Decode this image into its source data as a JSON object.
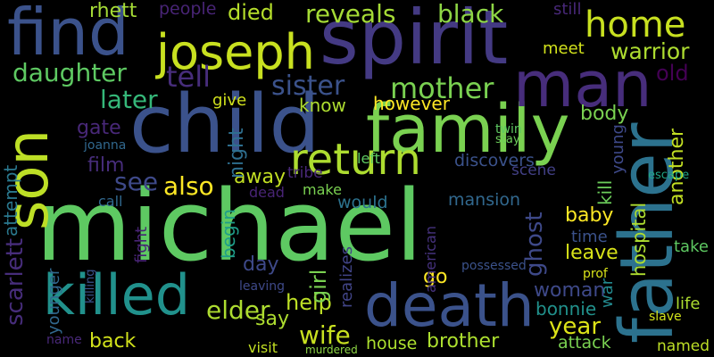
{
  "words": [
    {
      "text": "michael",
      "color": "#5ec962"
    },
    {
      "text": "child",
      "color": "#3b528b"
    },
    {
      "text": "spirit",
      "color": "#443a83"
    },
    {
      "text": "find",
      "color": "#3b528b"
    },
    {
      "text": "family",
      "color": "#7ad151"
    },
    {
      "text": "son",
      "color": "#bddf26"
    },
    {
      "text": "father",
      "color": "#2c728e"
    },
    {
      "text": "death",
      "color": "#3b528b"
    },
    {
      "text": "killed",
      "color": "#21918c"
    },
    {
      "text": "man",
      "color": "#472d7b"
    },
    {
      "text": "joseph",
      "color": "#c8e020"
    },
    {
      "text": "return",
      "color": "#addc30"
    },
    {
      "text": "home",
      "color": "#c8e020"
    },
    {
      "text": "mother",
      "color": "#7ad151"
    },
    {
      "text": "daughter",
      "color": "#5ec962"
    },
    {
      "text": "tell",
      "color": "#472d7b"
    },
    {
      "text": "sister",
      "color": "#3b528b"
    },
    {
      "text": "reveals",
      "color": "#a5db36"
    },
    {
      "text": "black",
      "color": "#8ed645"
    },
    {
      "text": "died",
      "color": "#b5de2b"
    },
    {
      "text": "rhett",
      "color": "#a5db36"
    },
    {
      "text": "people",
      "color": "#482475"
    },
    {
      "text": "warrior",
      "color": "#addc30"
    },
    {
      "text": "old",
      "color": "#440154"
    },
    {
      "text": "later",
      "color": "#35b779"
    },
    {
      "text": "however",
      "color": "#fde725"
    },
    {
      "text": "know",
      "color": "#addc30"
    },
    {
      "text": "give",
      "color": "#d0e11c"
    },
    {
      "text": "body",
      "color": "#7ad151"
    },
    {
      "text": "film",
      "color": "#472d7b"
    },
    {
      "text": "gate",
      "color": "#482878"
    },
    {
      "text": "see",
      "color": "#3e4989"
    },
    {
      "text": "also",
      "color": "#fde725"
    },
    {
      "text": "away",
      "color": "#c2df23"
    },
    {
      "text": "scarlett",
      "color": "#472d7b"
    },
    {
      "text": "attempt",
      "color": "#2a788e"
    },
    {
      "text": "elder",
      "color": "#addc30"
    },
    {
      "text": "help",
      "color": "#bddf26"
    },
    {
      "text": "wife",
      "color": "#c8e020"
    },
    {
      "text": "back",
      "color": "#d2e21b"
    },
    {
      "text": "say",
      "color": "#addc30"
    },
    {
      "text": "day",
      "color": "#3e4989"
    },
    {
      "text": "begin",
      "color": "#1f9e89"
    },
    {
      "text": "baby",
      "color": "#fde725"
    },
    {
      "text": "time",
      "color": "#3b528b"
    },
    {
      "text": "leave",
      "color": "#d8e219"
    },
    {
      "text": "year",
      "color": "#dde318"
    },
    {
      "text": "woman",
      "color": "#3e4989"
    },
    {
      "text": "bonnie",
      "color": "#21918c"
    },
    {
      "text": "house",
      "color": "#ade02f"
    },
    {
      "text": "brother",
      "color": "#ade02f"
    },
    {
      "text": "named",
      "color": "#bddf26"
    },
    {
      "text": "attack",
      "color": "#7ad151"
    },
    {
      "text": "ghost",
      "color": "#3e4989"
    },
    {
      "text": "girl",
      "color": "#7ad151"
    },
    {
      "text": "go",
      "color": "#fde725"
    },
    {
      "text": "american",
      "color": "#46327e"
    },
    {
      "text": "would",
      "color": "#2c728e"
    },
    {
      "text": "mansion",
      "color": "#31688e"
    },
    {
      "text": "make",
      "color": "#7ad151"
    },
    {
      "text": "discovers",
      "color": "#3b528b"
    },
    {
      "text": "another",
      "color": "#c2df23"
    },
    {
      "text": "hospital",
      "color": "#addc30"
    },
    {
      "text": "kill",
      "color": "#6ccd5a"
    },
    {
      "text": "young",
      "color": "#3e4989"
    },
    {
      "text": "life",
      "color": "#addc30"
    },
    {
      "text": "take",
      "color": "#5ec962"
    },
    {
      "text": "still",
      "color": "#482878"
    },
    {
      "text": "meet",
      "color": "#d2e21b"
    },
    {
      "text": "scene",
      "color": "#424086"
    },
    {
      "text": "tribe",
      "color": "#482878"
    },
    {
      "text": "dead",
      "color": "#482475"
    },
    {
      "text": "left",
      "color": "#5ec962"
    },
    {
      "text": "night",
      "color": "#2e6e8e"
    },
    {
      "text": "visit",
      "color": "#c2df23"
    },
    {
      "text": "younger",
      "color": "#31688e"
    },
    {
      "text": "fight",
      "color": "#482475"
    },
    {
      "text": "realizes",
      "color": "#414487"
    },
    {
      "text": "leaving",
      "color": "#3e4989"
    },
    {
      "text": "war",
      "color": "#23898e"
    },
    {
      "text": "escape",
      "color": "#20a486"
    },
    {
      "text": "call",
      "color": "#31688e"
    },
    {
      "text": "twin",
      "color": "#5ec962"
    },
    {
      "text": "stay",
      "color": "#6ccd5a"
    },
    {
      "text": "prof",
      "color": "#d8e219"
    },
    {
      "text": "possessed",
      "color": "#3b528b"
    },
    {
      "text": "joanna",
      "color": "#31688e"
    },
    {
      "text": "slave",
      "color": "#d2e21b"
    },
    {
      "text": "murdered",
      "color": "#8ed645"
    },
    {
      "text": "name",
      "color": "#482878"
    },
    {
      "text": "killing",
      "color": "#3b528b"
    }
  ]
}
